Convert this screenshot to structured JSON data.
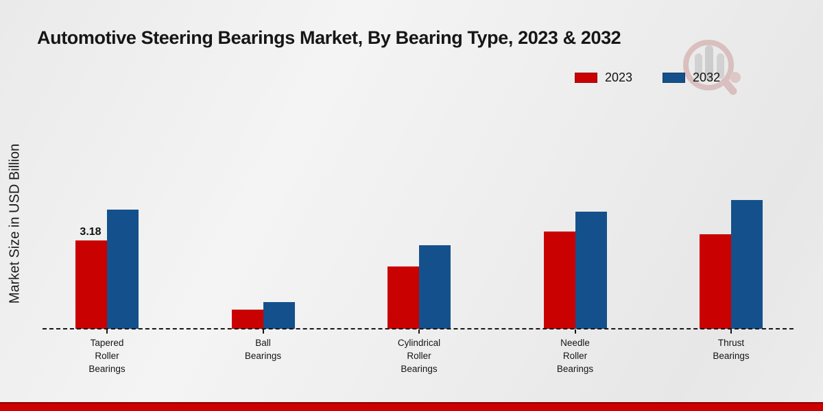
{
  "title": "Automotive Steering Bearings Market, By Bearing Type, 2023 & 2032",
  "y_axis_label": "Market Size in USD Billion",
  "legend": {
    "items": [
      {
        "label": "2023",
        "color": "#c90101"
      },
      {
        "label": "2032",
        "color": "#14518c"
      }
    ]
  },
  "colors": {
    "series_2023": "#c90101",
    "series_2032": "#14518c",
    "baseline": "#161616",
    "footer_band": "#cc0000",
    "footer_band_edge": "#8a0000",
    "background": "#ededed"
  },
  "watermark": {
    "name": "market-research-future-logo"
  },
  "chart_data": {
    "type": "bar",
    "title": "Automotive Steering Bearings Market, By Bearing Type, 2023 & 2032",
    "xlabel": "",
    "ylabel": "Market Size in USD Billion",
    "ylim": [
      0,
      5
    ],
    "grid": false,
    "legend_position": "top-right",
    "baseline_style": "dashed",
    "categories": [
      "Tapered Roller Bearings",
      "Ball Bearings",
      "Cylindrical Roller Bearings",
      "Needle Roller Bearings",
      "Thrust Bearings"
    ],
    "categories_wrapped": [
      [
        "Tapered",
        "Roller",
        "Bearings"
      ],
      [
        "Ball",
        "Bearings"
      ],
      [
        "Cylindrical",
        "Roller",
        "Bearings"
      ],
      [
        "Needle",
        "Roller",
        "Bearings"
      ],
      [
        "Thrust",
        "Bearings"
      ]
    ],
    "series": [
      {
        "name": "2023",
        "color": "#c90101",
        "values": [
          3.18,
          0.7,
          2.24,
          3.5,
          3.4
        ]
      },
      {
        "name": "2032",
        "color": "#14518c",
        "values": [
          4.28,
          0.97,
          3.0,
          4.21,
          4.63
        ]
      }
    ],
    "data_labels": [
      {
        "series_index": 0,
        "category_index": 0,
        "text": "3.18"
      }
    ]
  }
}
